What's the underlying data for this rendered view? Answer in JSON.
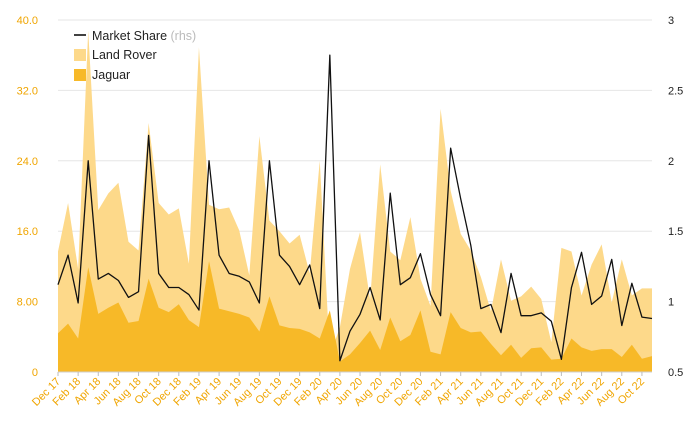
{
  "colors": {
    "land_rover": "#fdd98a",
    "jaguar": "#f7b928",
    "market_share": "#111111",
    "grid": "#e6e6e6",
    "axis_text": "#f0a500",
    "axis_text_right": "#222222",
    "legend_rhs": "#bbbbbb"
  },
  "chart_data": {
    "type": "area",
    "legend": {
      "items": [
        {
          "label": "Market Share",
          "suffix": "(rhs)",
          "kind": "line"
        },
        {
          "label": "Land Rover",
          "kind": "area"
        },
        {
          "label": "Jaguar",
          "kind": "area"
        }
      ],
      "position": "top-left"
    },
    "y_left": {
      "ylim": [
        0,
        40
      ],
      "ticks": [
        0,
        8,
        16,
        24,
        32,
        40
      ],
      "tick_labels": [
        "0",
        "8.00",
        "16.0",
        "24.0",
        "32.0",
        "40.0"
      ]
    },
    "y_right": {
      "ylim": [
        0.5,
        3
      ],
      "ticks": [
        0.5,
        1,
        1.5,
        2,
        2.5,
        3
      ],
      "tick_labels": [
        "0.5",
        "1",
        "1.5",
        "2",
        "2.5",
        "3"
      ]
    },
    "x_tick_labels": [
      {
        "index": 0,
        "label": "Dec 17"
      },
      {
        "index": 2,
        "label": "Feb 18"
      },
      {
        "index": 4,
        "label": "Apr 18"
      },
      {
        "index": 6,
        "label": "Jun 18"
      },
      {
        "index": 8,
        "label": "Aug 18"
      },
      {
        "index": 10,
        "label": "Oct 18"
      },
      {
        "index": 12,
        "label": "Dec 18"
      },
      {
        "index": 14,
        "label": "Feb 19"
      },
      {
        "index": 16,
        "label": "Apr 19"
      },
      {
        "index": 18,
        "label": "Jun 19"
      },
      {
        "index": 20,
        "label": "Aug 19"
      },
      {
        "index": 22,
        "label": "Oct 19"
      },
      {
        "index": 24,
        "label": "Dec 19"
      },
      {
        "index": 26,
        "label": "Feb 20"
      },
      {
        "index": 28,
        "label": "Apr 20"
      },
      {
        "index": 30,
        "label": "Jun 20"
      },
      {
        "index": 32,
        "label": "Aug 20"
      },
      {
        "index": 34,
        "label": "Oct 20"
      },
      {
        "index": 36,
        "label": "Dec 20"
      },
      {
        "index": 38,
        "label": "Feb 21"
      },
      {
        "index": 40,
        "label": "Apr 21"
      },
      {
        "index": 42,
        "label": "Jun 21"
      },
      {
        "index": 44,
        "label": "Aug 21"
      },
      {
        "index": 46,
        "label": "Oct 21"
      },
      {
        "index": 48,
        "label": "Dec 21"
      },
      {
        "index": 50,
        "label": "Feb 22"
      },
      {
        "index": 52,
        "label": "Apr 22"
      },
      {
        "index": 54,
        "label": "Jun 22"
      },
      {
        "index": 56,
        "label": "Aug 22"
      },
      {
        "index": 58,
        "label": "Oct 22"
      }
    ],
    "months": [
      "Dec 17",
      "Jan 18",
      "Feb 18",
      "Mar 18",
      "Apr 18",
      "May 18",
      "Jun 18",
      "Jul 18",
      "Aug 18",
      "Sep 18",
      "Oct 18",
      "Nov 18",
      "Dec 18",
      "Jan 19",
      "Feb 19",
      "Mar 19",
      "Apr 19",
      "May 19",
      "Jun 19",
      "Jul 19",
      "Aug 19",
      "Sep 19",
      "Oct 19",
      "Nov 19",
      "Dec 19",
      "Jan 20",
      "Feb 20",
      "Mar 20",
      "Apr 20",
      "May 20",
      "Jun 20",
      "Jul 20",
      "Aug 20",
      "Sep 20",
      "Oct 20",
      "Nov 20",
      "Dec 20",
      "Jan 21",
      "Feb 21",
      "Mar 21",
      "Apr 21",
      "May 21",
      "Jun 21",
      "Jul 21",
      "Aug 21",
      "Sep 21",
      "Oct 21",
      "Nov 21",
      "Dec 21",
      "Jan 22",
      "Feb 22",
      "Mar 22",
      "Apr 22",
      "May 22",
      "Jun 22",
      "Jul 22",
      "Aug 22",
      "Sep 22",
      "Oct 22",
      "Nov 22"
    ],
    "series": [
      {
        "name": "Land Rover",
        "axis": "left",
        "values": [
          13.7,
          19.2,
          11.7,
          38.8,
          18.4,
          20.3,
          21.5,
          14.8,
          13.8,
          28.3,
          19.2,
          17.9,
          18.6,
          12.3,
          36.9,
          19.0,
          18.5,
          18.7,
          16.1,
          11.0,
          26.8,
          17.2,
          16.0,
          14.6,
          15.6,
          11.2,
          24.0,
          1.8,
          5.1,
          11.7,
          15.9,
          8.2,
          23.6,
          13.7,
          12.7,
          17.6,
          10.6,
          7.5,
          29.9,
          20.6,
          15.7,
          13.8,
          10.8,
          6.9,
          12.8,
          8.1,
          8.6,
          9.7,
          8.3,
          3.4,
          14.1,
          13.7,
          8.7,
          12.2,
          14.5,
          7.9,
          12.8,
          8.7,
          9.5,
          9.5
        ]
      },
      {
        "name": "Jaguar",
        "axis": "left",
        "values": [
          4.4,
          5.5,
          3.8,
          11.9,
          6.6,
          7.3,
          7.9,
          5.6,
          5.8,
          10.6,
          7.3,
          6.8,
          7.7,
          5.9,
          5.1,
          12.6,
          7.2,
          6.9,
          6.6,
          6.2,
          4.6,
          8.6,
          5.3,
          5.0,
          4.9,
          4.5,
          3.8,
          7.0,
          1.2,
          2.0,
          3.3,
          4.7,
          2.5,
          6.2,
          3.5,
          4.2,
          7.0,
          2.3,
          2.0,
          6.8,
          5.0,
          4.5,
          4.6,
          3.2,
          1.9,
          3.1,
          1.6,
          2.7,
          2.8,
          1.4,
          1.5,
          3.8,
          2.8,
          2.4,
          2.6,
          2.6,
          1.7,
          3.1,
          1.5,
          1.8
        ]
      },
      {
        "name": "Market Share",
        "axis": "right",
        "values": [
          1.12,
          1.33,
          0.99,
          2.0,
          1.16,
          1.2,
          1.15,
          1.03,
          1.07,
          2.18,
          1.2,
          1.1,
          1.1,
          1.05,
          0.94,
          2.0,
          1.33,
          1.2,
          1.18,
          1.14,
          0.99,
          2.0,
          1.33,
          1.25,
          1.12,
          1.26,
          0.95,
          2.75,
          0.58,
          0.79,
          0.91,
          1.1,
          0.87,
          1.77,
          1.12,
          1.17,
          1.34,
          1.05,
          0.9,
          2.09,
          1.73,
          1.4,
          0.95,
          0.98,
          0.78,
          1.2,
          0.9,
          0.9,
          0.92,
          0.86,
          0.59,
          1.1,
          1.35,
          0.98,
          1.04,
          1.3,
          0.83,
          1.13,
          0.89,
          0.88
        ]
      }
    ]
  }
}
